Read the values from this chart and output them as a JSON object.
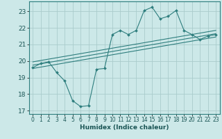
{
  "xlabel": "Humidex (Indice chaleur)",
  "bg_color": "#cce8e8",
  "line_color": "#2d7d7d",
  "grid_color": "#aacccc",
  "xlim": [
    -0.5,
    23.5
  ],
  "ylim": [
    16.8,
    23.6
  ],
  "xticks": [
    0,
    1,
    2,
    3,
    4,
    5,
    6,
    7,
    8,
    9,
    10,
    11,
    12,
    13,
    14,
    15,
    16,
    17,
    18,
    19,
    20,
    21,
    22,
    23
  ],
  "yticks": [
    17,
    18,
    19,
    20,
    21,
    22,
    23
  ],
  "data_x": [
    0,
    1,
    2,
    3,
    4,
    5,
    6,
    7,
    8,
    9,
    10,
    11,
    12,
    13,
    14,
    15,
    16,
    17,
    18,
    19,
    20,
    21,
    22,
    23
  ],
  "data_y": [
    19.6,
    19.85,
    19.95,
    19.3,
    18.8,
    17.6,
    17.25,
    17.3,
    19.5,
    19.55,
    21.6,
    21.85,
    21.6,
    21.85,
    23.05,
    23.25,
    22.55,
    22.7,
    23.05,
    21.85,
    21.6,
    21.3,
    21.5,
    21.6
  ],
  "line1_x": [
    0,
    23
  ],
  "line1_y": [
    19.55,
    21.45
  ],
  "line2_x": [
    0,
    23
  ],
  "line2_y": [
    19.75,
    21.65
  ],
  "line3_x": [
    0,
    23
  ],
  "line3_y": [
    19.95,
    21.85
  ]
}
